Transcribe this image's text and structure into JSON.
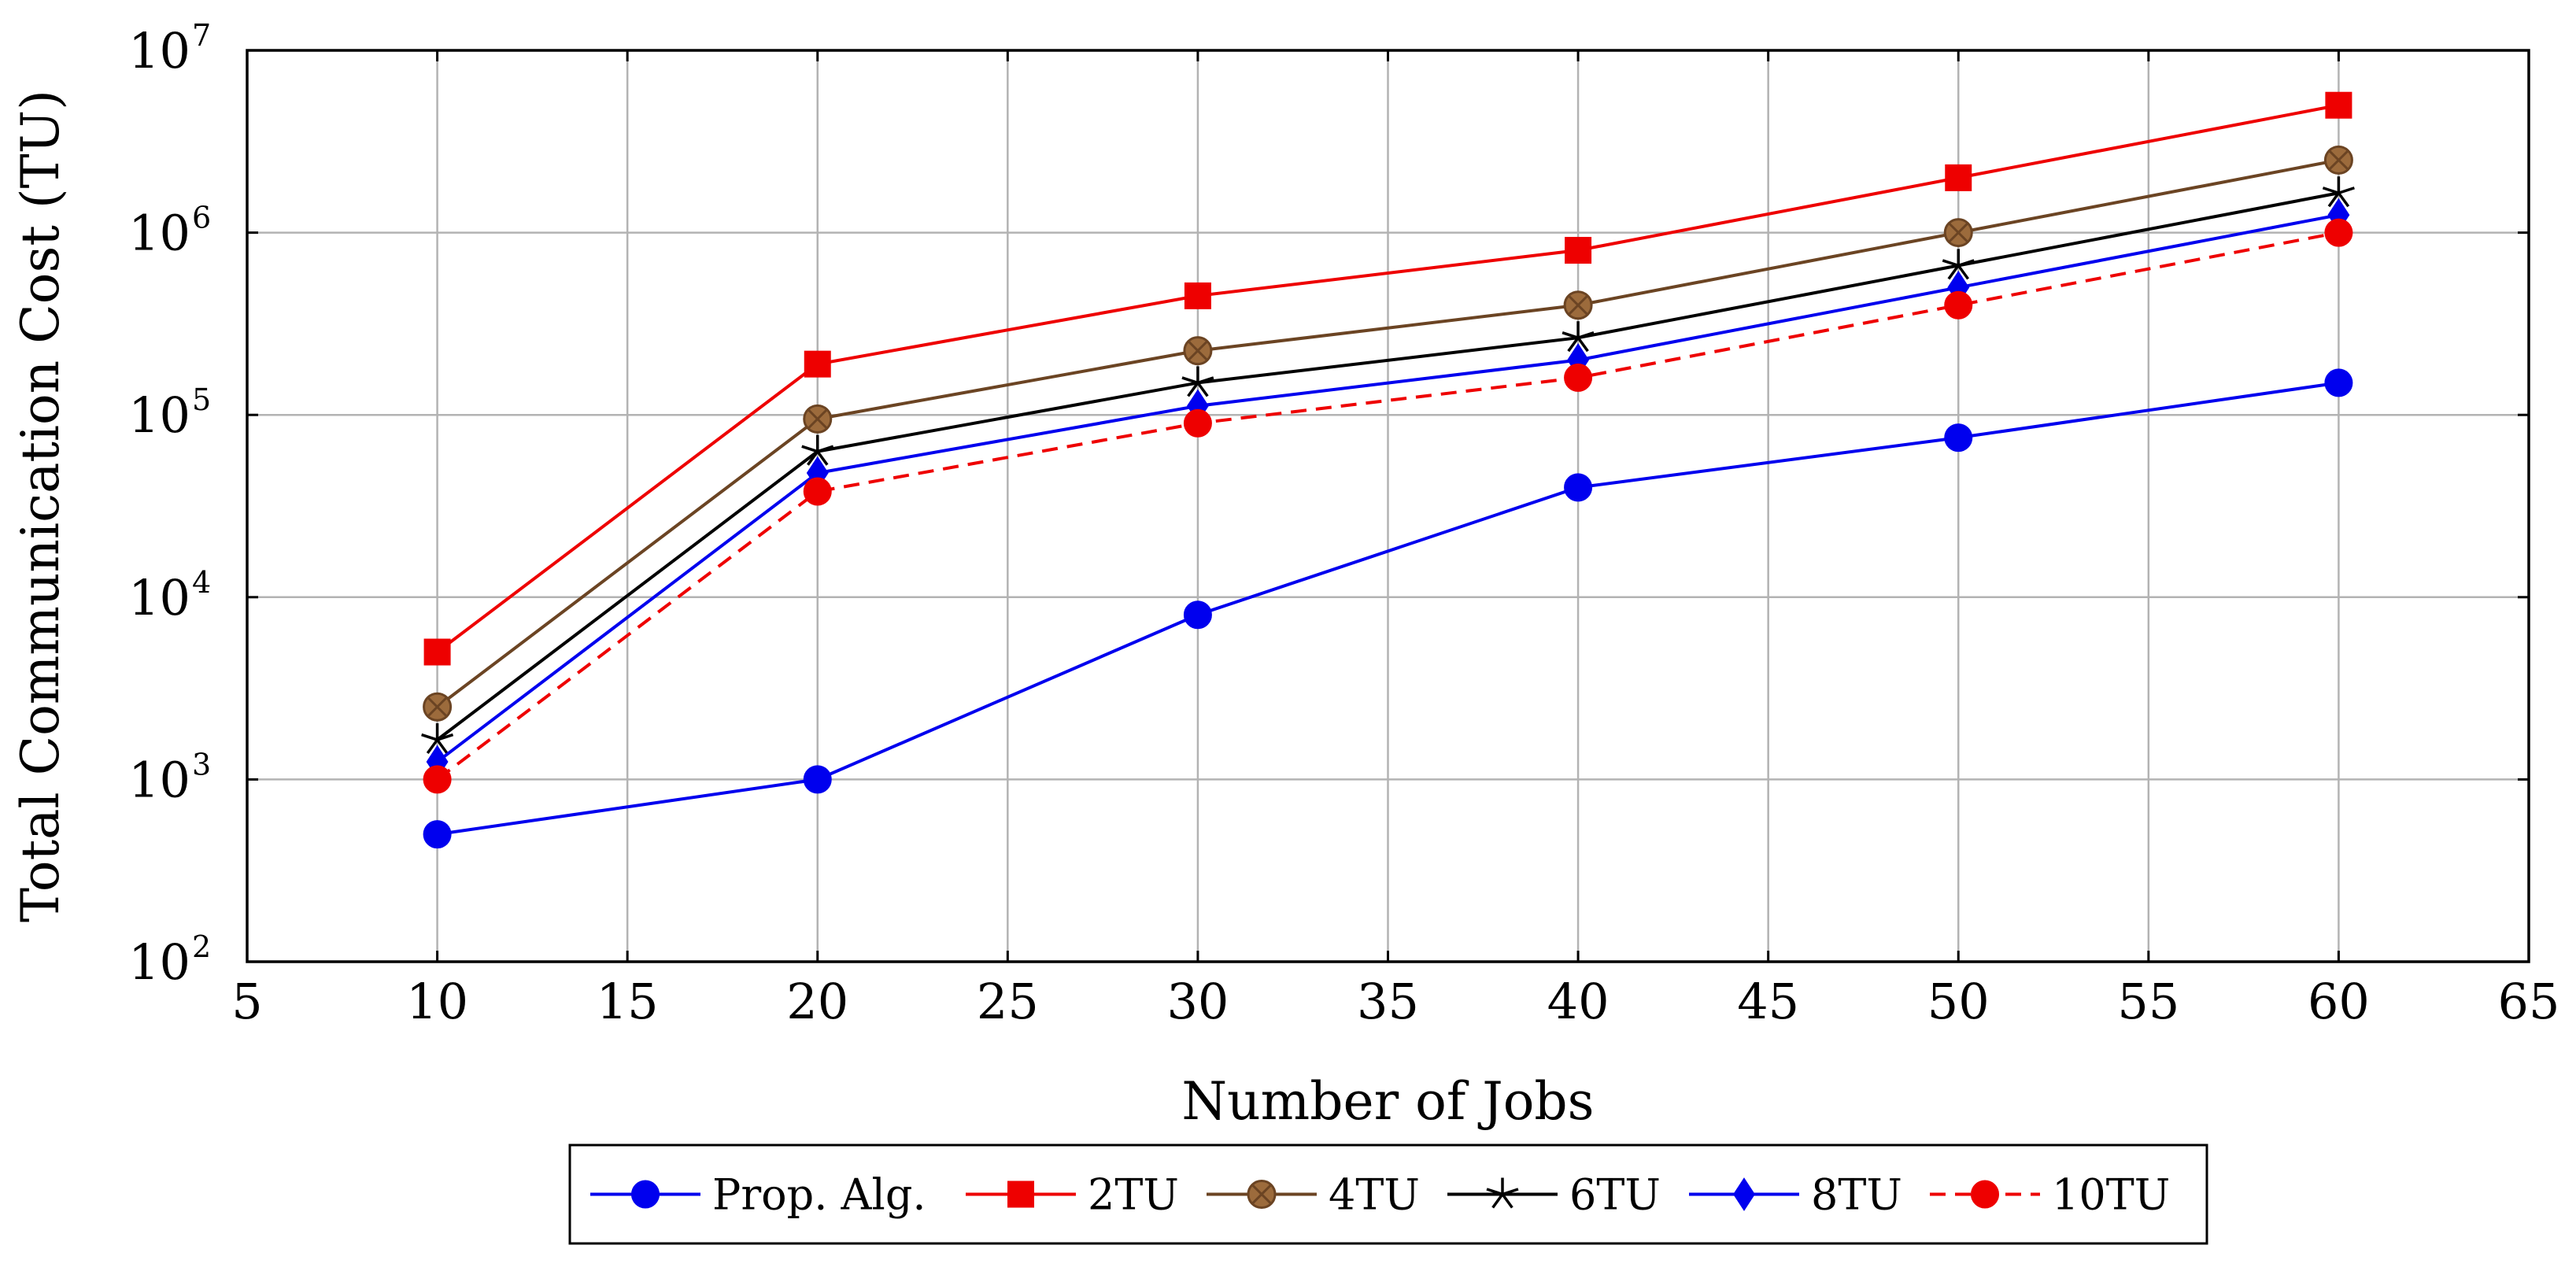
{
  "chart_data": {
    "type": "line",
    "title": "",
    "xlabel": "Number of Jobs",
    "ylabel": "Total Communication Cost (TU)",
    "xlim": [
      5,
      65
    ],
    "ylim": [
      100,
      10000000
    ],
    "yscale": "log",
    "grid": true,
    "legend_position": "bottom-center",
    "x": [
      10,
      20,
      30,
      40,
      50,
      60
    ],
    "x_ticks": [
      "5",
      "10",
      "15",
      "20",
      "25",
      "30",
      "35",
      "40",
      "45",
      "50",
      "55",
      "60",
      "65"
    ],
    "y_ticks": [
      {
        "base": "10",
        "exp": "2"
      },
      {
        "base": "10",
        "exp": "3"
      },
      {
        "base": "10",
        "exp": "4"
      },
      {
        "base": "10",
        "exp": "5"
      },
      {
        "base": "10",
        "exp": "6"
      },
      {
        "base": "10",
        "exp": "7"
      }
    ],
    "series": [
      {
        "name": "Prop. Alg.",
        "values": [
          500,
          1000,
          8000,
          40000,
          75000,
          150000
        ],
        "color": "#0000ee",
        "marker": "circle",
        "dash": "solid"
      },
      {
        "name": "2TU",
        "values": [
          5000,
          190000,
          450000,
          800000,
          2000000,
          5000000
        ],
        "color": "#ee0000",
        "marker": "square",
        "dash": "solid"
      },
      {
        "name": "4TU",
        "values": [
          2500,
          95000,
          225000,
          400000,
          1000000,
          2500000
        ],
        "color": "#6b4423",
        "marker": "otimes",
        "dash": "solid"
      },
      {
        "name": "6TU",
        "values": [
          1650,
          63000,
          150000,
          265000,
          660000,
          1650000
        ],
        "color": "#000000",
        "marker": "star",
        "dash": "solid"
      },
      {
        "name": "8TU",
        "values": [
          1250,
          48000,
          112000,
          200000,
          500000,
          1250000
        ],
        "color": "#0000ee",
        "marker": "diamond",
        "dash": "solid"
      },
      {
        "name": "10TU",
        "values": [
          1000,
          38000,
          90000,
          160000,
          400000,
          1000000
        ],
        "color": "#ee0000",
        "marker": "circle",
        "dash": "dashed"
      }
    ]
  }
}
